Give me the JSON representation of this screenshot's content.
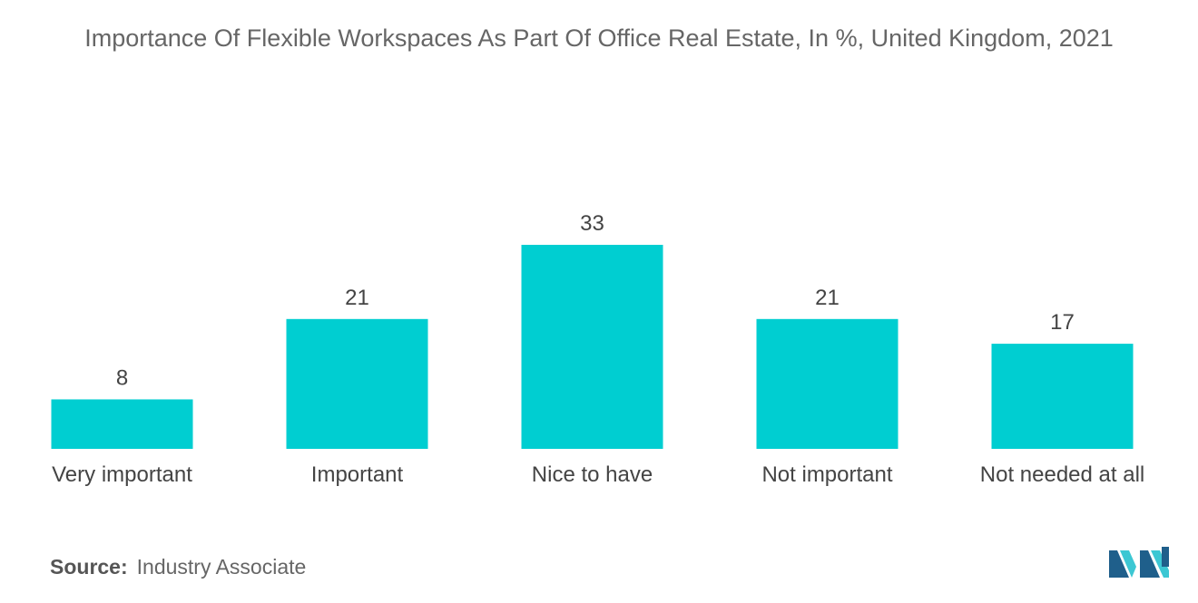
{
  "title": "Importance Of Flexible Workspaces As Part Of Office Real Estate, In %, United Kingdom, 2021",
  "source": {
    "label": "Source:",
    "value": "Industry Associate"
  },
  "colors": {
    "bar": "#00ced1",
    "logo_dark": "#1f5f8b",
    "logo_light": "#3cc7d3"
  },
  "logo": {
    "icon": "mordor-intelligence-logo"
  },
  "chart_data": {
    "type": "bar",
    "title": "Importance Of Flexible Workspaces As Part Of Office Real Estate, In %, United Kingdom, 2021",
    "categories": [
      "Very important",
      "Important",
      "Nice to have",
      "Not important",
      "Not needed at all"
    ],
    "values": [
      8,
      21,
      33,
      21,
      17
    ],
    "xlabel": "",
    "ylabel": "",
    "ylim": [
      0,
      33
    ],
    "grid": false,
    "legend": "none"
  }
}
